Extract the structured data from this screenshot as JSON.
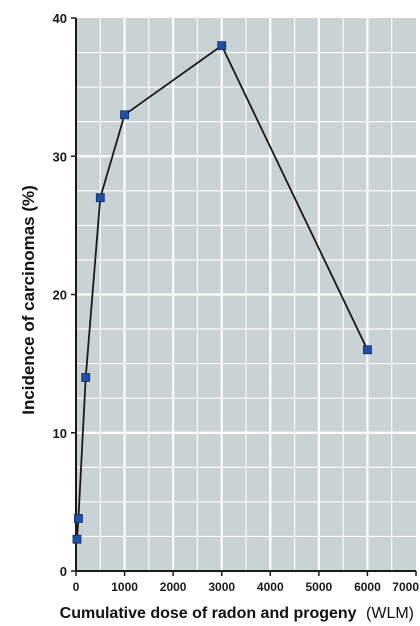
{
  "chart_data": {
    "type": "line",
    "xlabel": "Cumulative dose of radon and progeny",
    "xlabel_unit": "(WLM)",
    "ylabel": "Incidence of carcinomas (%)",
    "xlim": [
      0,
      7000
    ],
    "ylim": [
      0,
      40
    ],
    "x_ticks": [
      "0",
      "1000",
      "2000",
      "3000",
      "4000",
      "5000",
      "6000",
      "7000"
    ],
    "y_ticks": [
      "0",
      "10",
      "20",
      "30",
      "40"
    ],
    "grid": true,
    "series": [
      {
        "x": [
          20,
          50,
          200,
          500,
          1000,
          3000,
          6000
        ],
        "y": [
          2.3,
          3.8,
          14,
          27,
          33,
          38,
          16
        ]
      }
    ],
    "colors": {
      "background": "#c9d2d4",
      "grid": "#ffffff",
      "line": "#1a1a1a",
      "marker": "#1f4fa6",
      "frame": "#1a1a1a"
    }
  }
}
